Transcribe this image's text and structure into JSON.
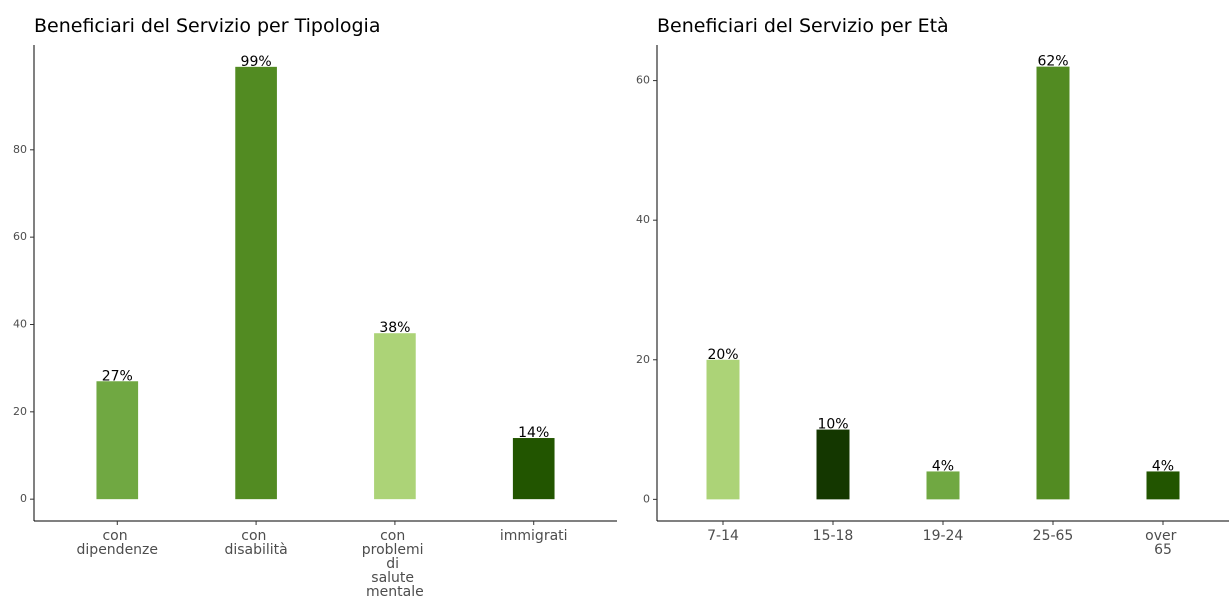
{
  "chart_data": [
    {
      "type": "bar",
      "title": "Beneficiari del Servizio per Tipologia",
      "categories": [
        "con dipendenze",
        "con disabilità",
        "con problemi di salute mentale",
        "immigrati"
      ],
      "values": [
        27,
        99,
        38,
        14
      ],
      "value_labels": [
        "27%",
        "99%",
        "38%",
        "14%"
      ],
      "colors": [
        "#70a842",
        "#528b22",
        "#acd377",
        "#225500"
      ],
      "ylim": [
        -5,
        104
      ],
      "yticks": [
        0,
        20,
        40,
        60,
        80
      ],
      "grid": false
    },
    {
      "type": "bar",
      "title": "Beneficiari del Servizio per Età",
      "categories": [
        "7-14",
        "15-18",
        "19-24",
        "25-65",
        "over 65"
      ],
      "values": [
        20,
        10,
        4,
        62,
        4
      ],
      "value_labels": [
        "20%",
        "10%",
        "4%",
        "62%",
        "4%"
      ],
      "colors": [
        "#acd377",
        "#143700",
        "#70a842",
        "#528b22",
        "#225500"
      ],
      "ylim": [
        -3.1,
        65.1
      ],
      "yticks": [
        0,
        20,
        40,
        60
      ],
      "grid": false
    }
  ]
}
